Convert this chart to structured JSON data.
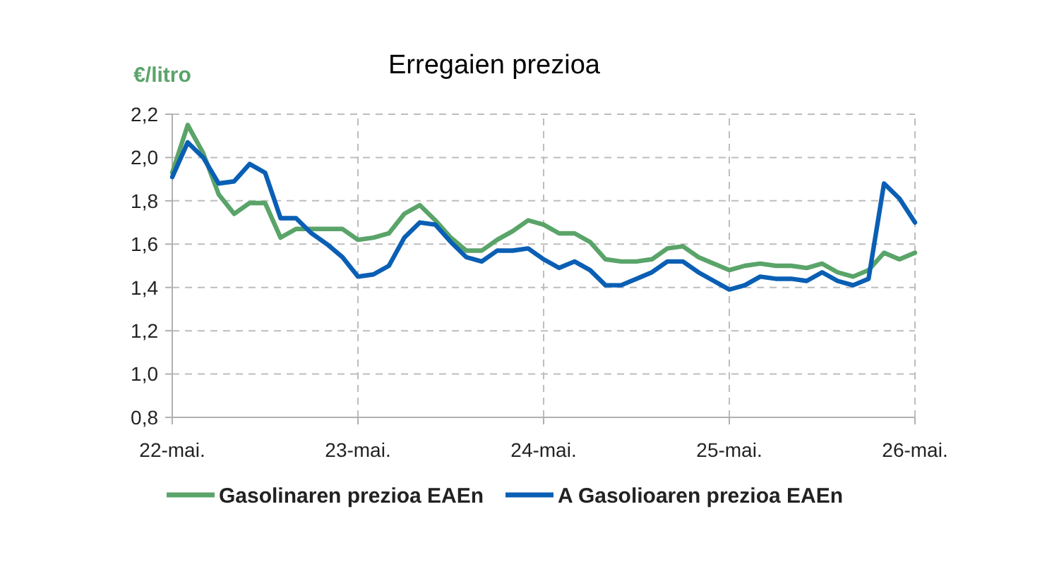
{
  "chart_data": {
    "type": "line",
    "title": "Erregaien prezioa",
    "ylabel": "€/litro",
    "categories": [
      "22-mai.",
      null,
      null,
      null,
      null,
      null,
      null,
      null,
      null,
      null,
      null,
      null,
      "23-mai.",
      null,
      null,
      null,
      null,
      null,
      null,
      null,
      null,
      null,
      null,
      null,
      "24-mai.",
      null,
      null,
      null,
      null,
      null,
      null,
      null,
      null,
      null,
      null,
      null,
      "25-mai.",
      null,
      null,
      null,
      null,
      null,
      null,
      null,
      null,
      null,
      null,
      null,
      "26-mai."
    ],
    "ylim": [
      0.8,
      2.2
    ],
    "yticks": [
      {
        "value": 0.8,
        "label": "0,8"
      },
      {
        "value": 1.0,
        "label": "1,0"
      },
      {
        "value": 1.2,
        "label": "1,2"
      },
      {
        "value": 1.4,
        "label": "1,4"
      },
      {
        "value": 1.6,
        "label": "1,6"
      },
      {
        "value": 1.8,
        "label": "1,8"
      },
      {
        "value": 2.0,
        "label": "2,0"
      },
      {
        "value": 2.2,
        "label": "2,2"
      }
    ],
    "grid": true,
    "legend": "bottom",
    "line_style": "solid",
    "series": [
      {
        "name": "Gasolinaren prezioa EAEn",
        "color": "#5aa469",
        "values": [
          1.93,
          2.15,
          2.02,
          1.83,
          1.74,
          1.79,
          1.79,
          1.63,
          1.67,
          1.67,
          1.67,
          1.67,
          1.62,
          1.63,
          1.65,
          1.74,
          1.78,
          1.71,
          1.63,
          1.57,
          1.57,
          1.62,
          1.66,
          1.71,
          1.69,
          1.65,
          1.65,
          1.61,
          1.53,
          1.52,
          1.52,
          1.53,
          1.58,
          1.59,
          1.54,
          1.51,
          1.48,
          1.5,
          1.51,
          1.5,
          1.5,
          1.49,
          1.51,
          1.47,
          1.45,
          1.48,
          1.56,
          1.53,
          1.56
        ]
      },
      {
        "name": "A Gasolioaren prezioa EAEn",
        "color": "#0a5fb4",
        "values": [
          1.91,
          2.07,
          2.0,
          1.88,
          1.89,
          1.97,
          1.93,
          1.72,
          1.72,
          1.65,
          1.6,
          1.54,
          1.45,
          1.46,
          1.5,
          1.63,
          1.7,
          1.69,
          1.61,
          1.54,
          1.52,
          1.57,
          1.57,
          1.58,
          1.53,
          1.49,
          1.52,
          1.48,
          1.41,
          1.41,
          1.44,
          1.47,
          1.52,
          1.52,
          1.47,
          1.43,
          1.39,
          1.41,
          1.45,
          1.44,
          1.44,
          1.43,
          1.47,
          1.43,
          1.41,
          1.44,
          1.88,
          1.81,
          1.7
        ]
      }
    ]
  }
}
